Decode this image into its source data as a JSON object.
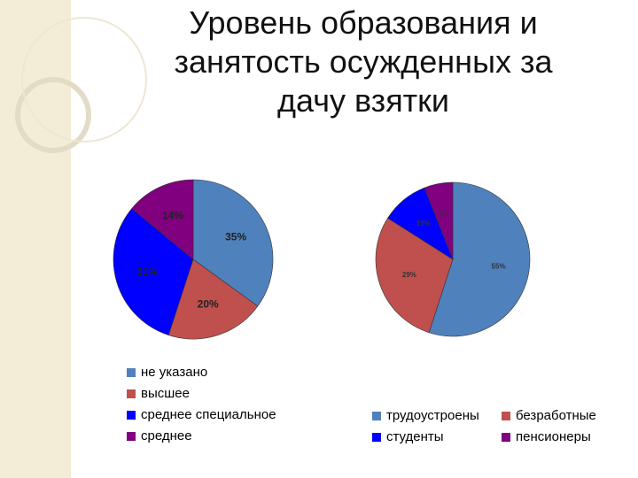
{
  "title": "Уровень образования и занятость осужденных за дачу взятки",
  "chart_data": [
    {
      "type": "pie",
      "categories": [
        "не указано",
        "высшее",
        "среднее специальное",
        "среднее"
      ],
      "values": [
        35,
        20,
        31,
        14
      ],
      "value_labels": [
        "35%",
        "20%",
        "31%",
        "14%"
      ],
      "colors": [
        "#4f81bd",
        "#c0504d",
        "#0000ff",
        "#800080"
      ],
      "legend": "bottom"
    },
    {
      "type": "pie",
      "categories": [
        "трудоустроены",
        "безработные",
        "студенты",
        "пенсионеры"
      ],
      "values": [
        55,
        29,
        10,
        6
      ],
      "value_labels": [
        "55%",
        "29%",
        "10%",
        "6%"
      ],
      "colors": [
        "#4f81bd",
        "#c0504d",
        "#0000ff",
        "#800080"
      ],
      "legend": "bottom"
    }
  ]
}
